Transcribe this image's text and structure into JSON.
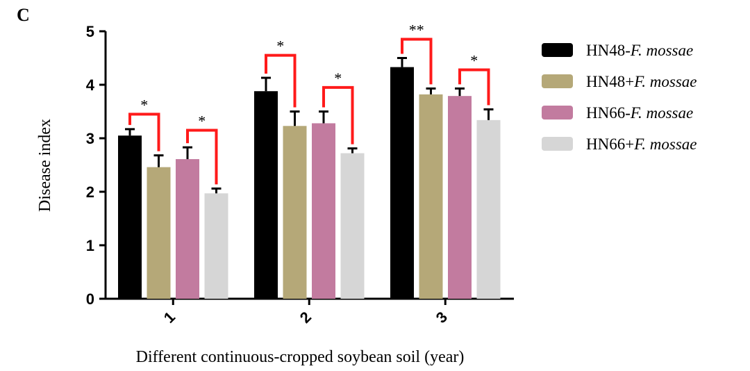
{
  "panel_label": "C",
  "chart_data": {
    "type": "bar",
    "xlabel": "Different continuous-cropped soybean soil (year)",
    "ylabel": "Disease index",
    "ylim": [
      0,
      5
    ],
    "yticks": [
      "0",
      "1",
      "2",
      "3",
      "4",
      "5"
    ],
    "categories": [
      "1",
      "2",
      "3"
    ],
    "legend_position": "right",
    "series": [
      {
        "name": "HN48-F. mossae",
        "label_prefix": "HN48-",
        "label_italic": "F. mossae",
        "color": "#000000",
        "values": [
          3.05,
          3.88,
          4.33
        ],
        "errors": [
          0.12,
          0.25,
          0.17
        ]
      },
      {
        "name": "HN48+F. mossae",
        "label_prefix": "HN48+",
        "label_italic": "F. mossae",
        "color": "#b5a878",
        "values": [
          2.46,
          3.23,
          3.82
        ],
        "errors": [
          0.22,
          0.27,
          0.11
        ]
      },
      {
        "name": "HN66-F. mossae",
        "label_prefix": "HN66-",
        "label_italic": "F. mossae",
        "color": "#c27b9f",
        "values": [
          2.61,
          3.28,
          3.79
        ],
        "errors": [
          0.22,
          0.22,
          0.14
        ]
      },
      {
        "name": "HN66+F. mossae",
        "label_prefix": "HN66+",
        "label_italic": "F. mossae",
        "color": "#d6d6d6",
        "values": [
          1.97,
          2.72,
          3.34
        ],
        "errors": [
          0.09,
          0.09,
          0.2
        ]
      }
    ],
    "significance": [
      {
        "category": 0,
        "from_series": 0,
        "to_series": 1,
        "top": 3.45,
        "label": "*"
      },
      {
        "category": 0,
        "from_series": 2,
        "to_series": 3,
        "top": 3.15,
        "label": "*"
      },
      {
        "category": 1,
        "from_series": 0,
        "to_series": 1,
        "top": 4.55,
        "label": "*"
      },
      {
        "category": 1,
        "from_series": 2,
        "to_series": 3,
        "top": 3.95,
        "label": "*"
      },
      {
        "category": 2,
        "from_series": 0,
        "to_series": 1,
        "top": 4.85,
        "label": "**"
      },
      {
        "category": 2,
        "from_series": 2,
        "to_series": 3,
        "top": 4.28,
        "label": "*"
      }
    ]
  }
}
